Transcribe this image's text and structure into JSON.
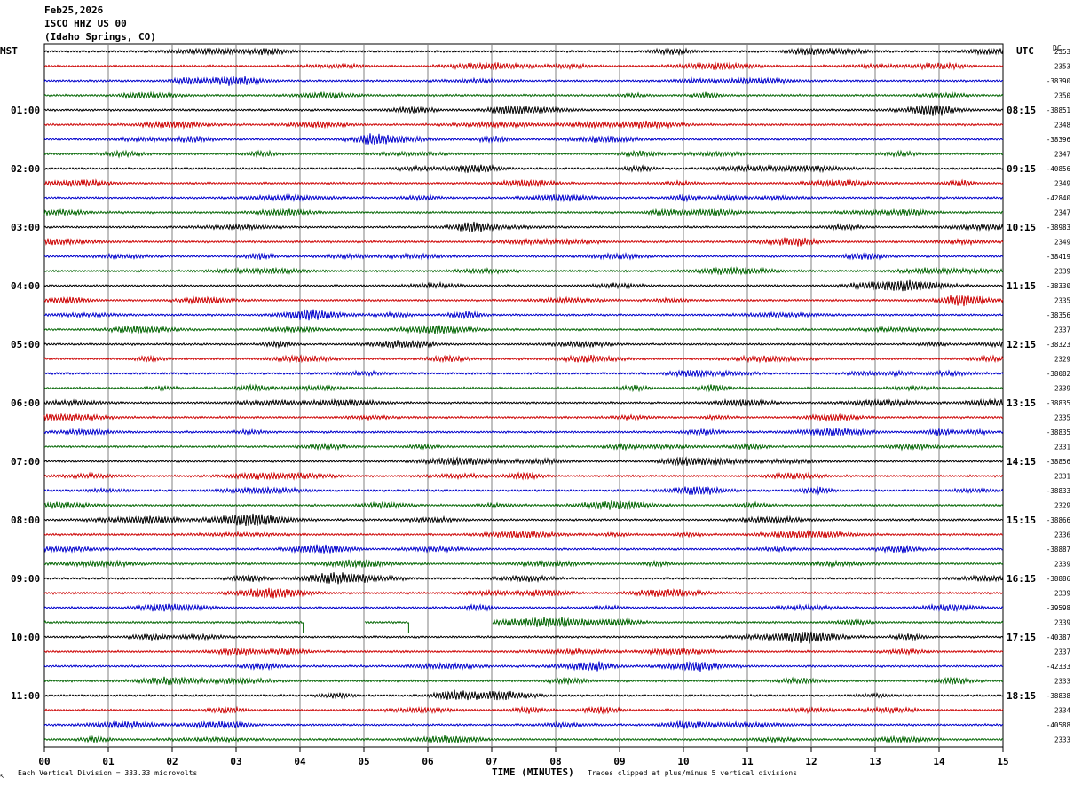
{
  "header": {
    "date": "Feb25,2026",
    "station": "ISCO HHZ US 00",
    "location": "(Idaho Springs, CO)"
  },
  "labels": {
    "left_timezone": "MST",
    "right_timezone": "UTC",
    "dc_header": "DC",
    "footer_scale": "Each Vertical Division =  333.33 microvolts",
    "footer_clip": "Traces clipped at plus/minus 5 vertical divisions",
    "footer_symbol": "↖"
  },
  "chart_data": {
    "type": "line",
    "title": "Feb25,2026 ISCO HHZ US 00 (Idaho Springs, CO)",
    "xlabel": "TIME (MINUTES)",
    "xlim": [
      0,
      15
    ],
    "x_ticks": [
      "00",
      "01",
      "02",
      "03",
      "04",
      "05",
      "06",
      "07",
      "08",
      "09",
      "10",
      "11",
      "12",
      "13",
      "14",
      "15"
    ],
    "trace_colors": [
      "#000000",
      "#cc0000",
      "#0000cc",
      "#006400"
    ],
    "trace_count": 48,
    "left_hour_labels": [
      "01:00",
      "02:00",
      "03:00",
      "04:00",
      "05:00",
      "06:00",
      "07:00",
      "08:00",
      "09:00",
      "10:00",
      "11:00"
    ],
    "right_hour_labels": [
      "08:15",
      "09:15",
      "10:15",
      "11:15",
      "12:15",
      "13:15",
      "14:15",
      "15:15",
      "16:15",
      "17:15",
      "18:15"
    ],
    "hour_label_rows": [
      4,
      8,
      12,
      16,
      20,
      24,
      28,
      32,
      36,
      40,
      44
    ],
    "dc_values": [
      "2353",
      "2353",
      "-38390",
      "2350",
      "-38851",
      "2348",
      "-38396",
      "2347",
      "-40856",
      "2349",
      "-42840",
      "2347",
      "-38983",
      "2349",
      "-38419",
      "2339",
      "-38330",
      "2335",
      "-38356",
      "2337",
      "-38323",
      "2329",
      "-38082",
      "2339",
      "-38835",
      "2335",
      "-38835",
      "2331",
      "-38856",
      "2331",
      "-38833",
      "2329",
      "-38866",
      "2336",
      "-38887",
      "2339",
      "-38886",
      "2339",
      "-39598",
      "2339",
      "-40387",
      "2337",
      "-42333",
      "2333",
      "-38838",
      "2334",
      "-40588",
      "2333"
    ],
    "gaps": [
      {
        "row": 39,
        "from_min": 4.05,
        "to_min": 5.0
      },
      {
        "row": 39,
        "from_min": 5.7,
        "to_min": 7.0
      }
    ],
    "vertical_division_microvolts": 333.33,
    "clip_divisions": 5
  }
}
